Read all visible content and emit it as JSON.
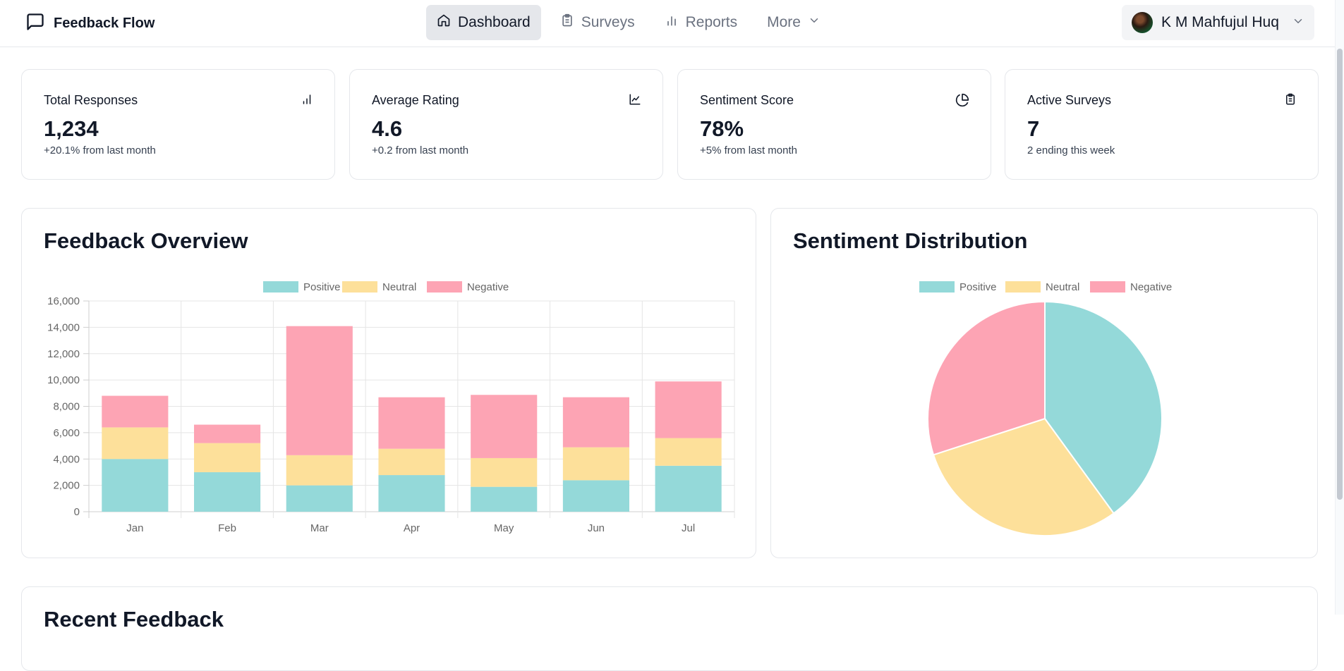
{
  "app": {
    "name": "Feedback Flow",
    "nav": [
      {
        "label": "Dashboard",
        "icon": "home-icon",
        "active": true
      },
      {
        "label": "Surveys",
        "icon": "clipboard-icon",
        "active": false
      },
      {
        "label": "Reports",
        "icon": "bar-chart-icon",
        "active": false
      },
      {
        "label": "More",
        "icon": "chevron-down-icon",
        "active": false
      }
    ],
    "user": {
      "name": "K M Mahfujul Huq"
    }
  },
  "stats": [
    {
      "title": "Total Responses",
      "value": "1,234",
      "sub": "+20.1% from last month",
      "icon": "bar-chart-icon"
    },
    {
      "title": "Average Rating",
      "value": "4.6",
      "sub": "+0.2 from last month",
      "icon": "line-chart-icon"
    },
    {
      "title": "Sentiment Score",
      "value": "78%",
      "sub": "+5% from last month",
      "icon": "pie-chart-icon"
    },
    {
      "title": "Active Surveys",
      "value": "7",
      "sub": "2 ending this week",
      "icon": "clipboard-icon"
    }
  ],
  "panels": {
    "overview_title": "Feedback Overview",
    "sentiment_title": "Sentiment Distribution",
    "recent_title": "Recent Feedback"
  },
  "colors": {
    "positive": "#94d9d9",
    "neutral": "#fde09a",
    "negative": "#fda4b4"
  },
  "chart_data": [
    {
      "type": "bar",
      "stacked": true,
      "title": "Feedback Overview",
      "categories": [
        "Jan",
        "Feb",
        "Mar",
        "Apr",
        "May",
        "Jun",
        "Jul"
      ],
      "series": [
        {
          "name": "Positive",
          "values": [
            4000,
            3000,
            2000,
            2780,
            1890,
            2390,
            3490
          ]
        },
        {
          "name": "Neutral",
          "values": [
            2400,
            2210,
            2290,
            2000,
            2180,
            2500,
            2100
          ]
        },
        {
          "name": "Negative",
          "values": [
            2400,
            1398,
            9800,
            3908,
            4800,
            3800,
            4300
          ]
        }
      ],
      "ylim": [
        0,
        16000
      ],
      "yticks": [
        "0",
        "2,000",
        "4,000",
        "6,000",
        "8,000",
        "10,000",
        "12,000",
        "14,000",
        "16,000"
      ],
      "legend": "top-center",
      "grid": true
    },
    {
      "type": "pie",
      "title": "Sentiment Distribution",
      "labels": [
        "Positive",
        "Neutral",
        "Negative"
      ],
      "values": [
        40,
        30,
        30
      ],
      "legend": "top-center"
    }
  ]
}
